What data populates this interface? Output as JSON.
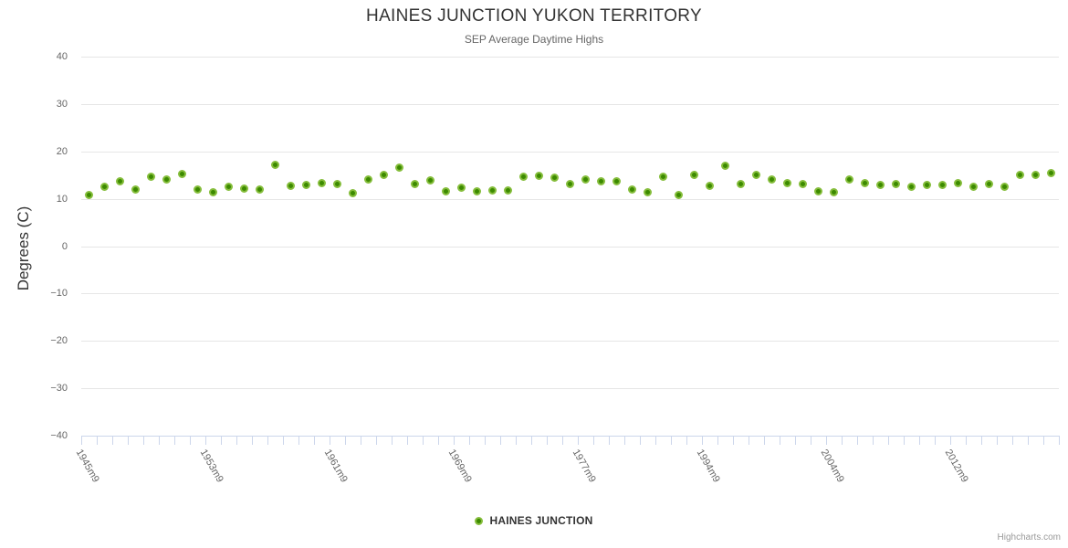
{
  "chart_data": {
    "type": "scatter",
    "title": "HAINES JUNCTION YUKON TERRITORY",
    "subtitle": "SEP Average Daytime Highs",
    "ylabel": "Degrees (C)",
    "ylim": [
      -40,
      40
    ],
    "y_ticks": [
      40,
      30,
      20,
      10,
      0,
      -10,
      -20,
      -30,
      -40
    ],
    "x_tick_indices": [
      0,
      8,
      16,
      24,
      32,
      40,
      48,
      56
    ],
    "x_tick_labels": [
      "1945m9",
      "1953m9",
      "1961m9",
      "1969m9",
      "1977m9",
      "1994m9",
      "2004m9",
      "2012m9"
    ],
    "num_points": 63,
    "grid": "horizontal-only",
    "legend_position": "bottom-center",
    "series": [
      {
        "name": "HAINES JUNCTION",
        "marker_fill": "#3c8a00",
        "marker_edge": "#85bd3b",
        "values": [
          10.8,
          12.5,
          13.6,
          11.9,
          14.6,
          14.1,
          15.2,
          12.0,
          11.3,
          12.6,
          12.2,
          12.0,
          17.2,
          12.7,
          13.0,
          13.4,
          13.1,
          11.2,
          14.0,
          15.1,
          16.5,
          13.1,
          13.8,
          11.6,
          12.4,
          11.6,
          11.7,
          11.8,
          14.7,
          14.9,
          14.4,
          13.2,
          14.1,
          13.7,
          13.6,
          12.0,
          11.4,
          14.7,
          10.8,
          15.0,
          12.8,
          17.0,
          13.2,
          15.0,
          14.1,
          13.3,
          13.2,
          11.6,
          11.4,
          14.0,
          13.4,
          13.0,
          13.1,
          12.6,
          13.0,
          13.0,
          13.3,
          12.6,
          13.2,
          12.6,
          15.0,
          15.1,
          15.4
        ]
      }
    ],
    "credits": "Highcharts.com"
  },
  "colors": {
    "background": "#ffffff",
    "title_text": "#333333",
    "subtitle_text": "#666666",
    "axis_label_text": "#666666",
    "grid_line": "#e6e6e6",
    "axis_line": "#ccd6eb",
    "point_fill": "#3c8a00",
    "point_edge": "#85bd3b",
    "legend_text": "#333333",
    "credits_text": "#999999"
  }
}
